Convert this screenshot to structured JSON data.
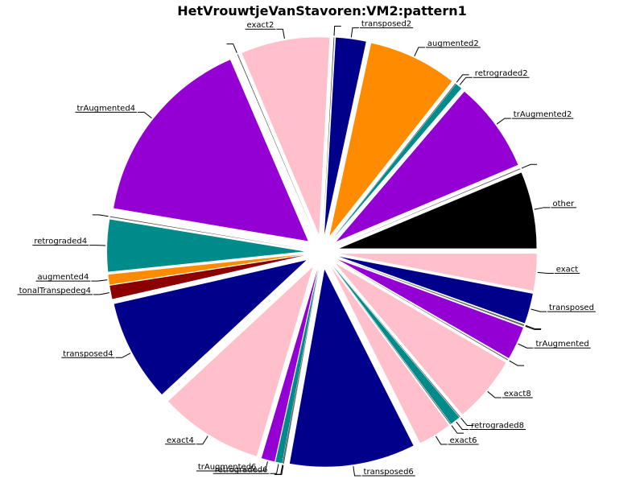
{
  "chart_data": {
    "type": "pie",
    "title": "HetVrouwtjeVanStavoren:VM2:pattern1",
    "exploded": true,
    "start_angle_deg": 0,
    "direction": "counterclockwise",
    "slices": [
      {
        "label": "other",
        "value": 0.0522,
        "color": "#000000"
      },
      {
        "label": "",
        "value": 0.0005,
        "color": "#4d4d4d"
      },
      {
        "label": "trAugmented2",
        "value": 0.0614,
        "color": "#9400d3"
      },
      {
        "label": "retrograded2",
        "value": 0.0045,
        "color": "#008b8b"
      },
      {
        "label": "",
        "value": 0.0005,
        "color": "#4d4d4d"
      },
      {
        "label": "augmented2",
        "value": 0.0602,
        "color": "#ff8c00"
      },
      {
        "label": "transposed2",
        "value": 0.0205,
        "color": "#00008b"
      },
      {
        "label": "",
        "value": 0.0005,
        "color": "#4d4d4d"
      },
      {
        "label": "exact2",
        "value": 0.0602,
        "color": "#ffc0cb"
      },
      {
        "label": "",
        "value": 0.0005,
        "color": "#4d4d4d"
      },
      {
        "label": "trAugmented4",
        "value": 0.1318,
        "color": "#9400d3"
      },
      {
        "label": "",
        "value": 0.0005,
        "color": "#4d4d4d"
      },
      {
        "label": "retrograded4",
        "value": 0.0352,
        "color": "#008b8b"
      },
      {
        "label": "augmented4",
        "value": 0.0068,
        "color": "#ff8c00"
      },
      {
        "label": "tonalTranspedeg4",
        "value": 0.0091,
        "color": "#8b0000"
      },
      {
        "label": "transposed4",
        "value": 0.0693,
        "color": "#00008b"
      },
      {
        "label": "exact4",
        "value": 0.0705,
        "color": "#ffc0cb"
      },
      {
        "label": "trAugmented6",
        "value": 0.0091,
        "color": "#9400d3"
      },
      {
        "label": "retrograded6",
        "value": 0.0045,
        "color": "#008b8b"
      },
      {
        "label": "",
        "value": 0.0005,
        "color": "#4d4d4d"
      },
      {
        "label": "",
        "value": 0.0005,
        "color": "#4d4d4d"
      },
      {
        "label": "transposed6",
        "value": 0.0852,
        "color": "#00008b"
      },
      {
        "label": "exact6",
        "value": 0.0227,
        "color": "#ffc0cb"
      },
      {
        "label": "",
        "value": 0.0005,
        "color": "#4d4d4d"
      },
      {
        "label": "retrograded8",
        "value": 0.0068,
        "color": "#008b8b"
      },
      {
        "label": "",
        "value": 0.0005,
        "color": "#4d4d4d"
      },
      {
        "label": "exact8",
        "value": 0.0455,
        "color": "#ffc0cb"
      },
      {
        "label": "",
        "value": 0.0005,
        "color": "#4d4d4d"
      },
      {
        "label": "trAugmented",
        "value": 0.0227,
        "color": "#9400d3"
      },
      {
        "label": "",
        "value": 0.0005,
        "color": "#4d4d4d"
      },
      {
        "label": "",
        "value": 0.0005,
        "color": "#4d4d4d"
      },
      {
        "label": "transposed",
        "value": 0.0205,
        "color": "#00008b"
      },
      {
        "label": "exact",
        "value": 0.025,
        "color": "#ffc0cb"
      }
    ]
  }
}
